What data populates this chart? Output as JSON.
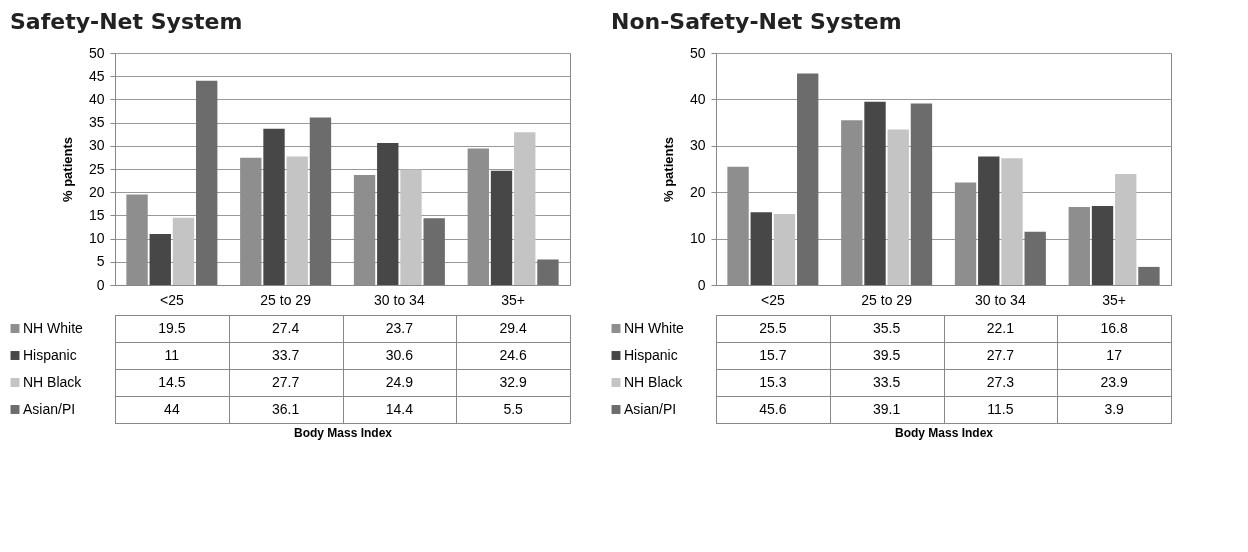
{
  "chart_data": [
    {
      "type": "bar",
      "title": "Safety-Net System",
      "xlabel": "Body Mass Index",
      "ylabel": "% patients",
      "categories": [
        "<25",
        "25 to 29",
        "30 to 34",
        "35+"
      ],
      "ylim": [
        0,
        50
      ],
      "yticks": [
        0,
        5,
        10,
        15,
        20,
        25,
        30,
        35,
        40,
        45,
        50
      ],
      "grid": "y",
      "legend": "bottom left",
      "data_labels": true,
      "series": [
        {
          "name": "NH White",
          "color": "#8e8e8e",
          "values": [
            19.5,
            27.4,
            23.7,
            29.4
          ]
        },
        {
          "name": "Hispanic",
          "color": "#474747",
          "values": [
            11,
            33.7,
            30.6,
            24.6
          ]
        },
        {
          "name": "NH Black",
          "color": "#c4c4c4",
          "values": [
            14.5,
            27.7,
            24.9,
            32.9
          ]
        },
        {
          "name": "Asian/PI",
          "color": "#6c6c6c",
          "values": [
            44,
            36.1,
            14.4,
            5.5
          ]
        }
      ]
    },
    {
      "type": "bar",
      "title": "Non-Safety-Net System",
      "xlabel": "Body Mass Index",
      "ylabel": "% patients",
      "categories": [
        "<25",
        "25 to 29",
        "30 to 34",
        "35+"
      ],
      "ylim": [
        0,
        50
      ],
      "yticks": [
        0,
        10,
        20,
        30,
        40,
        50
      ],
      "grid": "y",
      "legend": "bottom left",
      "data_labels": true,
      "series": [
        {
          "name": "NH White",
          "color": "#8e8e8e",
          "values": [
            25.5,
            35.5,
            22.1,
            16.8
          ]
        },
        {
          "name": "Hispanic",
          "color": "#474747",
          "values": [
            15.7,
            39.5,
            27.7,
            17
          ]
        },
        {
          "name": "NH Black",
          "color": "#c4c4c4",
          "values": [
            15.3,
            33.5,
            27.3,
            23.9
          ]
        },
        {
          "name": "Asian/PI",
          "color": "#6c6c6c",
          "values": [
            45.6,
            39.1,
            11.5,
            3.9
          ]
        }
      ]
    }
  ]
}
